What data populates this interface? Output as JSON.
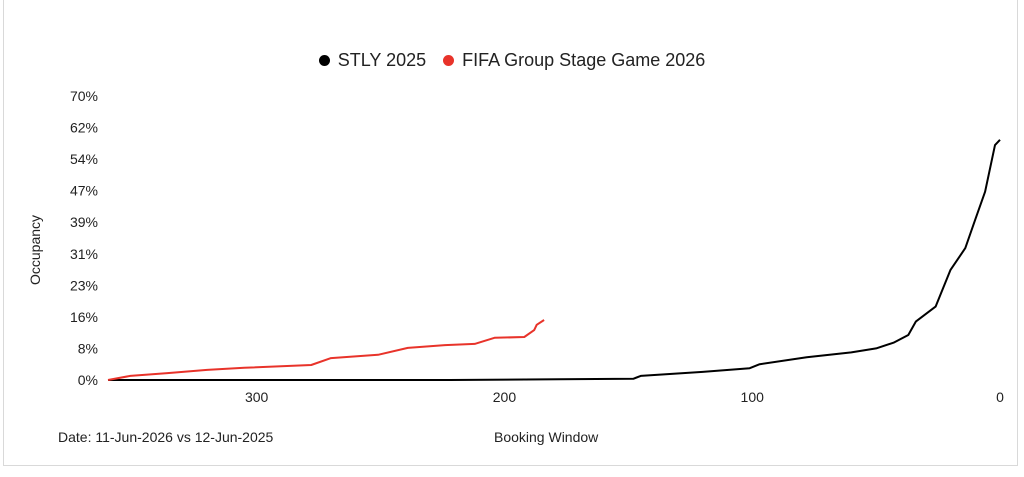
{
  "chart_data": {
    "type": "line",
    "title": "",
    "xlabel": "Booking Window",
    "ylabel": "Occupancy",
    "footnote": "Date: 11-Jun-2026 vs 12-Jun-2025",
    "xlim": [
      360,
      0
    ],
    "x_reversed": true,
    "x_ticks": [
      300,
      200,
      100,
      0
    ],
    "ylim": [
      0,
      70
    ],
    "y_ticks": [
      "0%",
      "8%",
      "16%",
      "23%",
      "31%",
      "39%",
      "47%",
      "54%",
      "62%",
      "70%"
    ],
    "grid": false,
    "legend": "top-center",
    "series": [
      {
        "name": "STLY 2025",
        "color": "#000000",
        "x": [
          360,
          222,
          178,
          148,
          145,
          120,
          101,
          97,
          78,
          60,
          50,
          43,
          37,
          34,
          26,
          20,
          14,
          10,
          6,
          2,
          0
        ],
        "y": [
          0,
          0,
          0.2,
          0.3,
          1.0,
          2.0,
          2.9,
          3.9,
          5.6,
          6.8,
          7.8,
          9.2,
          11.1,
          14.4,
          18.1,
          27.1,
          32.5,
          39.5,
          46.4,
          57.9,
          59.2
        ]
      },
      {
        "name": "FIFA Group Stage Game 2026",
        "color": "#e8332a",
        "x": [
          360,
          351,
          336,
          320,
          305,
          278,
          270,
          251,
          239,
          224,
          212,
          204,
          192,
          188,
          187,
          184
        ],
        "y": [
          0,
          1.0,
          1.7,
          2.5,
          3.0,
          3.7,
          5.4,
          6.2,
          7.9,
          8.6,
          8.9,
          10.4,
          10.6,
          12.3,
          13.6,
          14.8
        ]
      }
    ]
  }
}
